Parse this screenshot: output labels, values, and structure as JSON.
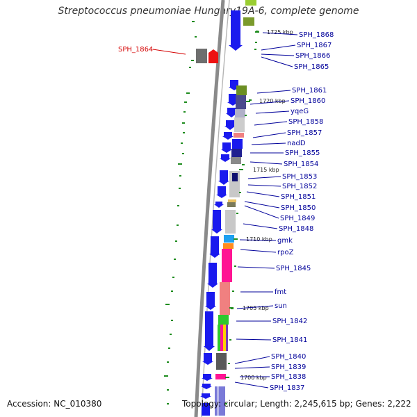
{
  "title": "Streptococcus pneumoniae Hungary19A-6, complete genome",
  "accession": "Accession: NC_010380",
  "topology": "Topology: circular; Length: 2,245,615 bp; Genes: 2,222",
  "ticks": [
    "1725 kbp",
    "1720 kbp",
    "1715 kbp",
    "1710 kbp",
    "1705 kbp",
    "1700 kbp"
  ],
  "genes": [
    {
      "label": "SPH_1868",
      "highlight": false
    },
    {
      "label": "SPH_1867",
      "highlight": false
    },
    {
      "label": "SPH_1866",
      "highlight": false
    },
    {
      "label": "SPH_1865",
      "highlight": false
    },
    {
      "label": "SPH_1864",
      "highlight": true
    },
    {
      "label": "SPH_1861",
      "highlight": false
    },
    {
      "label": "SPH_1860",
      "highlight": false
    },
    {
      "label": "yqeG",
      "highlight": false
    },
    {
      "label": "SPH_1858",
      "highlight": false
    },
    {
      "label": "SPH_1857",
      "highlight": false
    },
    {
      "label": "nadD",
      "highlight": false
    },
    {
      "label": "SPH_1855",
      "highlight": false
    },
    {
      "label": "SPH_1854",
      "highlight": false
    },
    {
      "label": "SPH_1853",
      "highlight": false
    },
    {
      "label": "SPH_1852",
      "highlight": false
    },
    {
      "label": "SPH_1851",
      "highlight": false
    },
    {
      "label": "SPH_1850",
      "highlight": false
    },
    {
      "label": "SPH_1849",
      "highlight": false
    },
    {
      "label": "SPH_1848",
      "highlight": false
    },
    {
      "label": "gmk",
      "highlight": false
    },
    {
      "label": "rpoZ",
      "highlight": false
    },
    {
      "label": "SPH_1845",
      "highlight": false
    },
    {
      "label": "fmt",
      "highlight": false
    },
    {
      "label": "sun",
      "highlight": false
    },
    {
      "label": "SPH_1842",
      "highlight": false
    },
    {
      "label": "SPH_1841",
      "highlight": false
    },
    {
      "label": "SPH_1840",
      "highlight": false
    },
    {
      "label": "SPH_1839",
      "highlight": false
    },
    {
      "label": "SPH_1838",
      "highlight": false
    },
    {
      "label": "SPH_1837",
      "highlight": false
    }
  ],
  "colors": {
    "forward_gene": "#1a1aee",
    "highlight_gene": "#ee1111",
    "label_blue": "#00009a",
    "label_red": "#d40000",
    "backbone": "#8a8a8a",
    "gc_skew": "#1e8c1e"
  }
}
